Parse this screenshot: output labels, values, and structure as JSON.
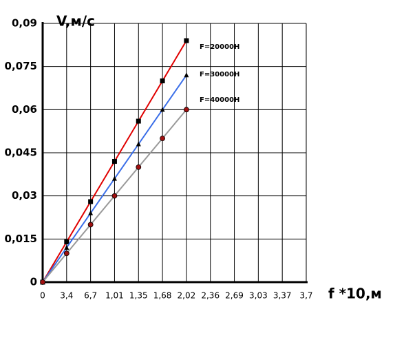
{
  "chart_data": {
    "type": "line",
    "y_label": "V,м/с",
    "x_label": "f *10,м",
    "categories": [
      "0",
      "3,4",
      "6,7",
      "1,01",
      "1,35",
      "1,68",
      "2,02",
      "2,36",
      "2,69",
      "3,03",
      "3,37",
      "3,7"
    ],
    "series": [
      {
        "name": "F=20000H",
        "color": "#e00000",
        "marker": "square",
        "marker_color": "#000000",
        "values": [
          0,
          0.014,
          0.028,
          0.042,
          0.056,
          0.07,
          0.084,
          null,
          null,
          null,
          null,
          null
        ]
      },
      {
        "name": "F=30000H",
        "color": "#3a6ee8",
        "marker": "triangle",
        "marker_color": "#000000",
        "values": [
          0,
          0.012,
          0.024,
          0.036,
          0.048,
          0.06,
          0.072,
          null,
          null,
          null,
          null,
          null
        ]
      },
      {
        "name": "F=40000H",
        "color": "#999999",
        "marker": "circle",
        "marker_color": "#a01010",
        "values": [
          0,
          0.01,
          0.02,
          0.03,
          0.04,
          0.05,
          0.06,
          null,
          null,
          null,
          null,
          null
        ]
      }
    ],
    "ylim": [
      0,
      0.09
    ],
    "yticks": [
      0,
      {
        "value": 0.015,
        "label": "0,015"
      },
      {
        "value": 0.03,
        "label": "0,03"
      },
      {
        "value": 0.045,
        "label": "0,045"
      },
      {
        "value": 0.06,
        "label": "0,06"
      },
      {
        "value": 0.075,
        "label": "0,075"
      },
      {
        "value": 0.09,
        "label": "0,09"
      }
    ],
    "grid": true
  }
}
